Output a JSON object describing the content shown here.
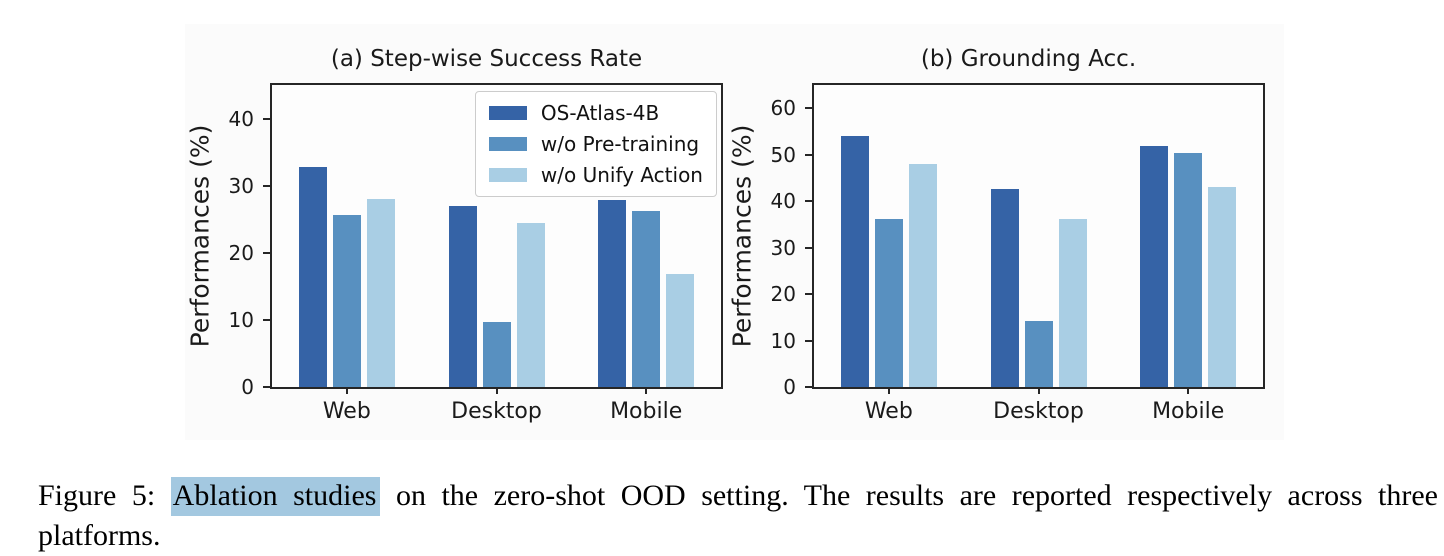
{
  "caption": {
    "prefix": "Figure 5: ",
    "highlight": "Ablation studies",
    "suffix": " on the zero-shot OOD setting. The results are reported respectively across three platforms.",
    "highlight_color": "#a3c8e0"
  },
  "chart_data": [
    {
      "type": "bar",
      "title": "(a) Step-wise Success Rate",
      "ylabel": "Performances (%)",
      "xlabel": "",
      "categories": [
        "Web",
        "Desktop",
        "Mobile"
      ],
      "series": [
        {
          "name": "OS-Atlas-4B",
          "color": "#3563a6",
          "values": [
            32.8,
            27.0,
            27.8
          ]
        },
        {
          "name": "w/o Pre-training",
          "color": "#5890c0",
          "values": [
            25.6,
            9.7,
            26.2
          ]
        },
        {
          "name": "w/o Unify Action",
          "color": "#a9cee4",
          "values": [
            28.0,
            24.5,
            16.8
          ]
        }
      ],
      "yticks": [
        0,
        10,
        20,
        30,
        40
      ],
      "ylim": [
        0,
        45
      ],
      "grid": false,
      "legend": {
        "show": true,
        "position": "upper right"
      }
    },
    {
      "type": "bar",
      "title": "(b) Grounding Acc.",
      "ylabel": "Performances (%)",
      "xlabel": "",
      "categories": [
        "Web",
        "Desktop",
        "Mobile"
      ],
      "series": [
        {
          "name": "OS-Atlas-4B",
          "color": "#3563a6",
          "values": [
            54.0,
            42.6,
            51.9
          ]
        },
        {
          "name": "w/o Pre-training",
          "color": "#5890c0",
          "values": [
            36.2,
            14.2,
            50.4
          ]
        },
        {
          "name": "w/o Unify Action",
          "color": "#a9cee4",
          "values": [
            48.0,
            36.2,
            43.1
          ]
        }
      ],
      "yticks": [
        0,
        10,
        20,
        30,
        40,
        50,
        60
      ],
      "ylim": [
        0,
        65
      ],
      "grid": false,
      "legend": {
        "show": false,
        "position": ""
      }
    }
  ]
}
